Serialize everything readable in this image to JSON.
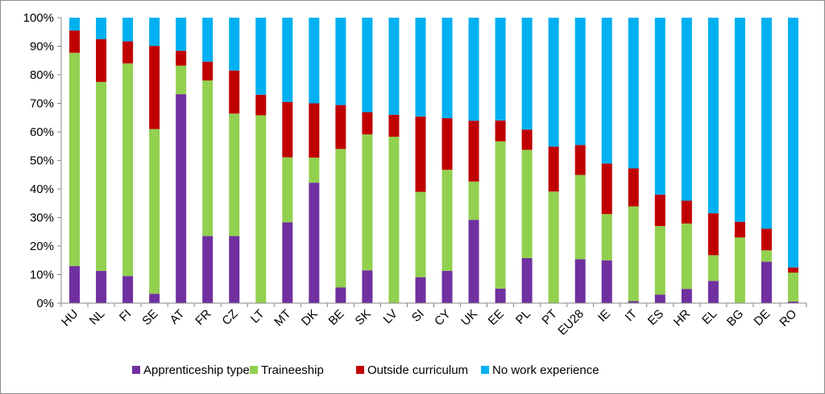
{
  "chart_data": {
    "type": "bar",
    "stacked": true,
    "categories": [
      "HU",
      "NL",
      "FI",
      "SE",
      "AT",
      "FR",
      "CZ",
      "LT",
      "MT",
      "DK",
      "BE",
      "SK",
      "LV",
      "SI",
      "CY",
      "UK",
      "EE",
      "PL",
      "PT",
      "EU28",
      "IE",
      "IT",
      "ES",
      "HR",
      "EL",
      "BG",
      "DE",
      "RO"
    ],
    "series": [
      {
        "name": "Apprenticeship type",
        "color": "#7030a0",
        "values": [
          13,
          11.3,
          9.5,
          3.3,
          73.2,
          23.5,
          23.5,
          0,
          28.3,
          42.2,
          5.5,
          11.5,
          0,
          9.1,
          11.3,
          29.2,
          5.1,
          15.8,
          0,
          15.4,
          15,
          0.7,
          3,
          5,
          7.8,
          0,
          14.5,
          0.6
        ]
      },
      {
        "name": "Traineeship",
        "color": "#92d050",
        "values": [
          74.7,
          66.2,
          74.5,
          57.7,
          10,
          54.5,
          42.9,
          65.8,
          22.8,
          8.8,
          48.5,
          47.6,
          58.3,
          29.9,
          35.4,
          13.4,
          51.6,
          37.9,
          39.1,
          29.5,
          16.2,
          33.2,
          24,
          22.9,
          9,
          23,
          4,
          10.1
        ]
      },
      {
        "name": "Outside curriculum",
        "color": "#c00000",
        "values": [
          7.8,
          15,
          7.7,
          29.1,
          5.2,
          6.6,
          15.1,
          7.2,
          19.4,
          19,
          15.4,
          7.8,
          7.7,
          26.4,
          18.1,
          21.3,
          7.3,
          7.1,
          15.7,
          10.5,
          17.7,
          13.3,
          11,
          8,
          14.7,
          5.5,
          7.6,
          1.8
        ]
      },
      {
        "name": "No work experience",
        "color": "#00b0f0",
        "values": [
          4.5,
          7.5,
          8.3,
          9.9,
          11.6,
          15.4,
          18.5,
          27,
          29.5,
          30,
          30.6,
          33.1,
          34,
          34.6,
          35.2,
          36.1,
          36,
          39.2,
          45.2,
          44.6,
          51.1,
          52.8,
          62,
          64.1,
          68.5,
          71.5,
          73.9,
          87.5
        ]
      }
    ],
    "y_tick_labels": [
      "0%",
      "10%",
      "20%",
      "30%",
      "40%",
      "50%",
      "60%",
      "70%",
      "80%",
      "90%",
      "100%"
    ],
    "ylim": [
      0,
      100
    ],
    "grid": false,
    "legend_position": "bottom"
  }
}
